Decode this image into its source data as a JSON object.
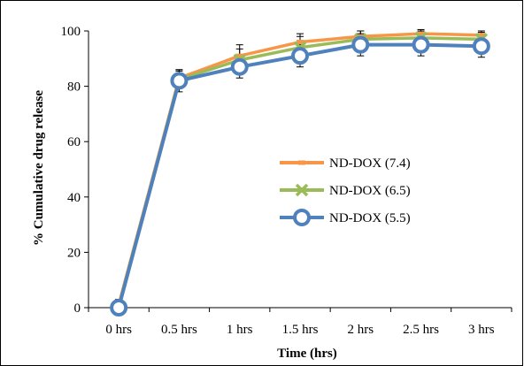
{
  "chart_data": {
    "type": "line",
    "title": "",
    "xlabel": "Time (hrs)",
    "ylabel": "% Cumulative drug release",
    "ylim": [
      0,
      100
    ],
    "yticks": [
      0,
      20,
      40,
      60,
      80,
      100
    ],
    "categories": [
      "0 hrs",
      "0.5 hrs",
      "1 hrs",
      "1.5 hrs",
      "2 hrs",
      "2.5 hrs",
      "3 hrs"
    ],
    "grid": false,
    "legend": "center-right",
    "series": [
      {
        "name": "ND-DOX (7.4)",
        "values": [
          1,
          83,
          91,
          96,
          98,
          99,
          98.5
        ],
        "errors": [
          2,
          3,
          4,
          3,
          2,
          1.5,
          1.5
        ],
        "color": "#F79646",
        "marker": "dash"
      },
      {
        "name": "ND-DOX (6.5)",
        "values": [
          0.5,
          82.5,
          89.5,
          94,
          97,
          97.5,
          97
        ],
        "errors": [
          1.5,
          3,
          4,
          4,
          3,
          2.5,
          2.5
        ],
        "color": "#9BBB59",
        "marker": "x"
      },
      {
        "name": "ND-DOX (5.5)",
        "values": [
          0,
          82,
          87,
          91,
          95,
          95,
          94.5
        ],
        "errors": [
          1,
          4,
          4,
          4,
          4,
          4,
          4
        ],
        "color": "#4F81BD",
        "marker": "circle"
      }
    ]
  }
}
